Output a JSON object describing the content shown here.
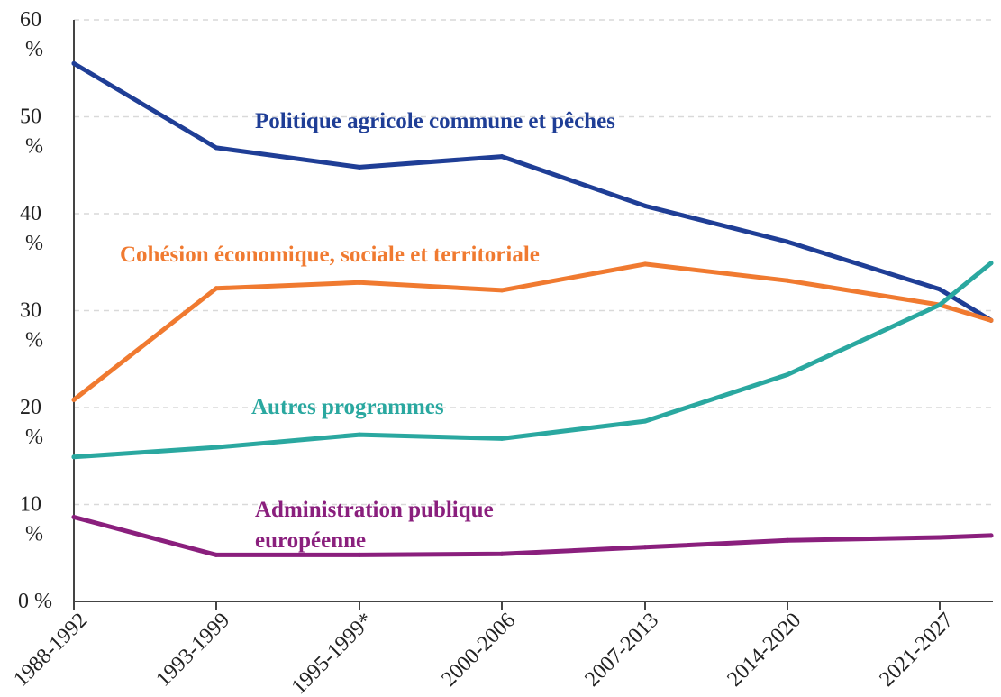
{
  "chart_data": {
    "type": "line",
    "title": "",
    "xlabel": "",
    "ylabel": "",
    "ylim": [
      0,
      60
    ],
    "y_ticks": [
      {
        "value": 0,
        "label": "0 %"
      },
      {
        "value": 10,
        "label": "10 %"
      },
      {
        "value": 20,
        "label": "20 %"
      },
      {
        "value": 30,
        "label": "30 %"
      },
      {
        "value": 40,
        "label": "40 %"
      },
      {
        "value": 50,
        "label": "50 %"
      },
      {
        "value": 60,
        "label": "60 %"
      }
    ],
    "categories": [
      "1988-1992",
      "1993-1999",
      "1995-1999*",
      "2000-2006",
      "2007-2013",
      "2014-2020",
      "2021-2027",
      ""
    ],
    "grid": "horizontal-dashed",
    "legend": "inline-labels",
    "series": [
      {
        "name": "Politique agricole commune et pêches",
        "color": "#1f3e96",
        "values": [
          55.5,
          46.8,
          44.8,
          45.9,
          40.8,
          37.1,
          32.2,
          29.0
        ]
      },
      {
        "name": "Cohésion économique, sociale et territoriale",
        "color": "#f07a30",
        "values": [
          20.8,
          32.3,
          32.9,
          32.1,
          34.8,
          33.1,
          30.6,
          29.0
        ]
      },
      {
        "name": "Autres programmes",
        "color": "#2aa8a0",
        "values": [
          14.9,
          15.9,
          17.2,
          16.8,
          18.6,
          23.4,
          30.6,
          34.9
        ]
      },
      {
        "name": "Administration publique européenne",
        "color": "#8a1f7d",
        "values": [
          8.7,
          4.8,
          4.8,
          4.9,
          5.6,
          6.3,
          6.6,
          6.8
        ]
      }
    ],
    "labels": [
      {
        "text": "Politique agricole commune et pêches",
        "color": "#1f3e96"
      },
      {
        "text": "Cohésion économique, sociale et territoriale",
        "color": "#f07a30"
      },
      {
        "text": "Autres programmes",
        "color": "#2aa8a0"
      },
      {
        "text": "Administration publique",
        "color": "#8a1f7d"
      },
      {
        "text": "européenne",
        "color": "#8a1f7d"
      }
    ]
  }
}
